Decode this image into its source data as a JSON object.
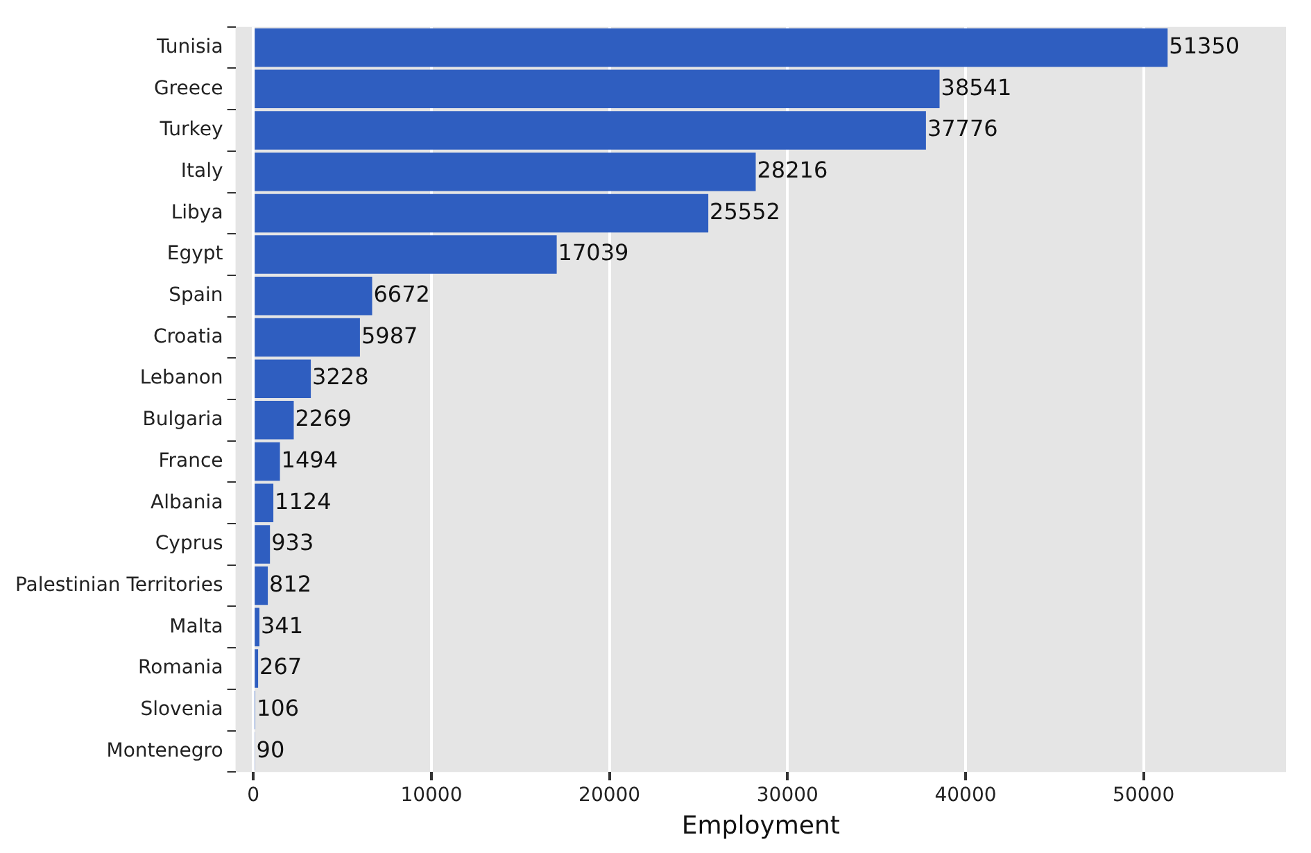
{
  "chart_data": {
    "type": "bar",
    "orientation": "horizontal",
    "xlabel": "Employment",
    "categories": [
      "Tunisia",
      "Greece",
      "Turkey",
      "Italy",
      "Libya",
      "Egypt",
      "Spain",
      "Croatia",
      "Lebanon",
      "Bulgaria",
      "France",
      "Albania",
      "Cyprus",
      "Palestinian Territories",
      "Malta",
      "Romania",
      "Slovenia",
      "Montenegro"
    ],
    "values": [
      51350,
      38541,
      37776,
      28216,
      25552,
      17039,
      6672,
      5987,
      3228,
      2269,
      1494,
      1124,
      933,
      812,
      341,
      267,
      106,
      90
    ],
    "color": "#2f5ec0",
    "xlim": [
      -1000,
      58000
    ],
    "xticks": [
      0,
      10000,
      20000,
      30000,
      40000,
      50000
    ],
    "grid": "x",
    "data_labels": true,
    "legend": false
  }
}
